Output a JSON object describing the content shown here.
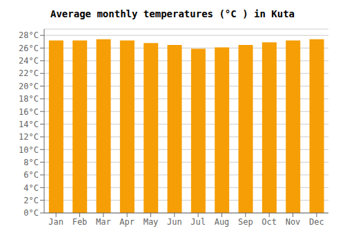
{
  "chart_data": {
    "type": "bar",
    "title": "Average monthly temperatures (°C ) in Kuta",
    "categories": [
      "Jan",
      "Feb",
      "Mar",
      "Apr",
      "May",
      "Jun",
      "Jul",
      "Aug",
      "Sep",
      "Oct",
      "Nov",
      "Dec"
    ],
    "values": [
      27.2,
      27.2,
      27.4,
      27.2,
      26.8,
      26.5,
      25.9,
      26.1,
      26.5,
      26.9,
      27.2,
      27.4
    ],
    "color": "#F59E05",
    "ylim": [
      0,
      29
    ],
    "yticks": [
      {
        "value": 0,
        "label": "0°C"
      },
      {
        "value": 2,
        "label": "2°C"
      },
      {
        "value": 4,
        "label": "4°C"
      },
      {
        "value": 6,
        "label": "6°C"
      },
      {
        "value": 8,
        "label": "8°C"
      },
      {
        "value": 10,
        "label": "10°C"
      },
      {
        "value": 12,
        "label": "12°C"
      },
      {
        "value": 14,
        "label": "14°C"
      },
      {
        "value": 16,
        "label": "16°C"
      },
      {
        "value": 18,
        "label": "18°C"
      },
      {
        "value": 20,
        "label": "20°C"
      },
      {
        "value": 22,
        "label": "22°C"
      },
      {
        "value": 24,
        "label": "24°C"
      },
      {
        "value": 26,
        "label": "26°C"
      },
      {
        "value": 28,
        "label": "28°C"
      }
    ],
    "grid": true
  }
}
